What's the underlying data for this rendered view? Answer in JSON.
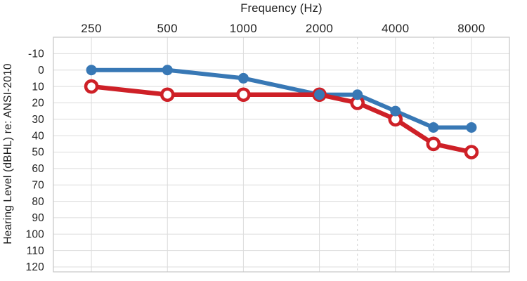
{
  "chart_data": {
    "type": "line",
    "title": "Frequency (Hz)",
    "xlabel": "Frequency (Hz)",
    "ylabel": "Hearing Level (dBHL) re: ANSI-2010",
    "x_scale": "octave-log",
    "x_ticks": [
      "250",
      "500",
      "1000",
      "2000",
      "4000",
      "8000"
    ],
    "x_tick_values": [
      250,
      500,
      1000,
      2000,
      4000,
      8000
    ],
    "x_minor_dashed_gridlines": [
      3000,
      6000
    ],
    "y_ticks": [
      -10,
      0,
      10,
      20,
      30,
      40,
      50,
      60,
      70,
      80,
      90,
      100,
      110,
      120
    ],
    "ylim": [
      -20,
      123
    ],
    "y_direction": "increases-downward",
    "grid": true,
    "legend": "none",
    "series": [
      {
        "id": "blue-line",
        "color": "#3878B5",
        "marker": "filled-circle",
        "line_width": 6,
        "x": [
          250,
          500,
          1000,
          2000,
          3000,
          4000,
          6000,
          8000
        ],
        "y": [
          0,
          0,
          5,
          15,
          15,
          25,
          35,
          35
        ]
      },
      {
        "id": "red-line",
        "color": "#CE2027",
        "marker": "open-circle",
        "line_width": 6.5,
        "x": [
          250,
          500,
          1000,
          2000,
          3000,
          4000,
          6000,
          8000
        ],
        "y": [
          10,
          15,
          15,
          15,
          20,
          30,
          45,
          50
        ]
      }
    ],
    "colors": {
      "grid": "#DCDCDC",
      "border": "#C6C6C6",
      "minor_grid": "#D4D4D4",
      "text": "#1F1F1F",
      "background": "#FFFFFF"
    }
  }
}
